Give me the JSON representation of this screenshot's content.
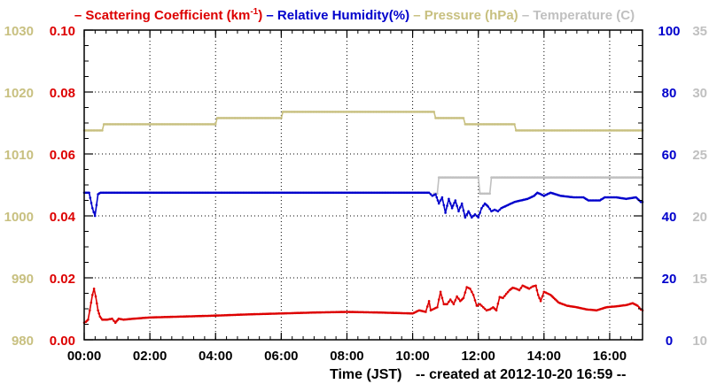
{
  "chart_data": {
    "type": "line",
    "legend": {
      "placement": "top",
      "items": [
        {
          "prefix": "– ",
          "text": "Scattering Coefficient (km",
          "sup": "-1",
          "suffix": ")",
          "color": "#dd0000"
        },
        {
          "prefix": "– ",
          "text": "Relative Humidity(%)",
          "color": "#0000cc"
        },
        {
          "prefix": "– ",
          "text": "Pressure (hPa)",
          "color": "#c8c080"
        },
        {
          "prefix": "– ",
          "text": "Temperature (C)",
          "color": "#c0c0c0"
        }
      ]
    },
    "xlabel": "Time (JST)",
    "footer": "-- created at 2012-10-20 16:59 --",
    "x_range": [
      0,
      17
    ],
    "x_unit": "hours",
    "x_ticks": [
      {
        "v": 0,
        "label": "00:00"
      },
      {
        "v": 2,
        "label": "02:00"
      },
      {
        "v": 4,
        "label": "04:00"
      },
      {
        "v": 6,
        "label": "06:00"
      },
      {
        "v": 8,
        "label": "08:00"
      },
      {
        "v": 10,
        "label": "10:00"
      },
      {
        "v": 12,
        "label": "12:00"
      },
      {
        "v": 14,
        "label": "14:00"
      },
      {
        "v": 16,
        "label": "16:00"
      }
    ],
    "grid": true,
    "axes": {
      "scattering": {
        "range": [
          0,
          0.1
        ],
        "ticks": [
          "0.00",
          "0.02",
          "0.04",
          "0.06",
          "0.08",
          "0.10"
        ],
        "color": "#dd0000",
        "side": "left-inner"
      },
      "pressure": {
        "range": [
          980,
          1030
        ],
        "ticks": [
          "980",
          "990",
          "1000",
          "1010",
          "1020",
          "1030"
        ],
        "color": "#c8c080",
        "side": "left-outer"
      },
      "humidity": {
        "range": [
          0,
          100
        ],
        "ticks": [
          "0",
          "20",
          "40",
          "60",
          "80",
          "100"
        ],
        "color": "#0000cc",
        "side": "right-inner"
      },
      "temperature": {
        "range": [
          10,
          35
        ],
        "ticks": [
          "10",
          "15",
          "20",
          "25",
          "30",
          "35"
        ],
        "color": "#c0c0c0",
        "side": "right-outer"
      }
    },
    "series": [
      {
        "key": "pressure",
        "axis": "pressure",
        "color": "#c8c080",
        "points": [
          [
            0,
            1013.8
          ],
          [
            0.55,
            1013.8
          ],
          [
            0.6,
            1014.8
          ],
          [
            4.0,
            1014.8
          ],
          [
            4.05,
            1015.8
          ],
          [
            6.0,
            1015.8
          ],
          [
            6.05,
            1016.8
          ],
          [
            10.65,
            1016.8
          ],
          [
            10.7,
            1015.8
          ],
          [
            11.55,
            1015.8
          ],
          [
            11.6,
            1014.8
          ],
          [
            13.1,
            1014.8
          ],
          [
            13.15,
            1013.8
          ],
          [
            17,
            1013.8
          ]
        ]
      },
      {
        "key": "temperature",
        "axis": "temperature",
        "color": "#c0c0c0",
        "points": [
          [
            10.65,
            21.8
          ],
          [
            10.75,
            21.8
          ],
          [
            10.8,
            23.1
          ],
          [
            12.0,
            23.1
          ],
          [
            12.05,
            21.8
          ],
          [
            12.35,
            21.8
          ],
          [
            12.4,
            23.1
          ],
          [
            17,
            23.1
          ]
        ]
      },
      {
        "key": "humidity",
        "axis": "humidity",
        "color": "#0000cc",
        "points": [
          [
            0,
            47.5
          ],
          [
            0.15,
            47.5
          ],
          [
            0.25,
            42.5
          ],
          [
            0.33,
            40.0
          ],
          [
            0.42,
            47.0
          ],
          [
            0.5,
            47.5
          ],
          [
            2,
            47.5
          ],
          [
            4,
            47.5
          ],
          [
            6,
            47.5
          ],
          [
            8,
            47.5
          ],
          [
            10,
            47.5
          ],
          [
            10.5,
            47.5
          ],
          [
            10.6,
            46.5
          ],
          [
            10.7,
            47.0
          ],
          [
            10.8,
            44.0
          ],
          [
            10.9,
            46.0
          ],
          [
            11.0,
            41.0
          ],
          [
            11.1,
            45.5
          ],
          [
            11.2,
            42.5
          ],
          [
            11.3,
            45.0
          ],
          [
            11.4,
            41.5
          ],
          [
            11.5,
            44.0
          ],
          [
            11.6,
            39.5
          ],
          [
            11.7,
            41.5
          ],
          [
            11.8,
            39.5
          ],
          [
            11.9,
            40.5
          ],
          [
            12.0,
            39.5
          ],
          [
            12.1,
            42.5
          ],
          [
            12.2,
            44.0
          ],
          [
            12.3,
            43.0
          ],
          [
            12.4,
            41.5
          ],
          [
            12.5,
            42.0
          ],
          [
            12.6,
            41.5
          ],
          [
            12.7,
            42.5
          ],
          [
            12.9,
            43.5
          ],
          [
            13.1,
            44.5
          ],
          [
            13.3,
            45.0
          ],
          [
            13.5,
            45.5
          ],
          [
            13.7,
            46.5
          ],
          [
            13.8,
            47.5
          ],
          [
            14.0,
            46.5
          ],
          [
            14.2,
            47.5
          ],
          [
            14.5,
            46.5
          ],
          [
            14.9,
            46.0
          ],
          [
            15.2,
            46.0
          ],
          [
            15.35,
            45.0
          ],
          [
            15.7,
            45.0
          ],
          [
            15.85,
            46.0
          ],
          [
            16.2,
            46.0
          ],
          [
            16.5,
            45.5
          ],
          [
            16.8,
            46.0
          ],
          [
            16.95,
            44.5
          ],
          [
            17,
            44.5
          ]
        ]
      },
      {
        "key": "scattering",
        "axis": "scattering",
        "color": "#dd0000",
        "points": [
          [
            0,
            0.0055
          ],
          [
            0.05,
            0.0058
          ],
          [
            0.12,
            0.0065
          ],
          [
            0.17,
            0.0095
          ],
          [
            0.25,
            0.0145
          ],
          [
            0.3,
            0.0165
          ],
          [
            0.35,
            0.014
          ],
          [
            0.42,
            0.0095
          ],
          [
            0.48,
            0.0075
          ],
          [
            0.55,
            0.0065
          ],
          [
            0.7,
            0.0065
          ],
          [
            0.85,
            0.0068
          ],
          [
            0.95,
            0.0055
          ],
          [
            1.05,
            0.0068
          ],
          [
            1.2,
            0.0065
          ],
          [
            1.5,
            0.0068
          ],
          [
            2,
            0.0072
          ],
          [
            3,
            0.0075
          ],
          [
            4,
            0.0078
          ],
          [
            5,
            0.0082
          ],
          [
            6,
            0.0085
          ],
          [
            7,
            0.0088
          ],
          [
            8,
            0.009
          ],
          [
            9,
            0.0088
          ],
          [
            10,
            0.0085
          ],
          [
            10.2,
            0.0095
          ],
          [
            10.4,
            0.009
          ],
          [
            10.5,
            0.0125
          ],
          [
            10.55,
            0.0095
          ],
          [
            10.65,
            0.01
          ],
          [
            10.75,
            0.0105
          ],
          [
            10.85,
            0.0155
          ],
          [
            10.95,
            0.0115
          ],
          [
            11.05,
            0.0115
          ],
          [
            11.15,
            0.013
          ],
          [
            11.25,
            0.0115
          ],
          [
            11.35,
            0.014
          ],
          [
            11.45,
            0.0125
          ],
          [
            11.55,
            0.0135
          ],
          [
            11.65,
            0.017
          ],
          [
            11.75,
            0.0165
          ],
          [
            11.85,
            0.0145
          ],
          [
            11.95,
            0.011
          ],
          [
            12.05,
            0.0115
          ],
          [
            12.15,
            0.0105
          ],
          [
            12.25,
            0.0095
          ],
          [
            12.35,
            0.0098
          ],
          [
            12.45,
            0.0105
          ],
          [
            12.55,
            0.0095
          ],
          [
            12.65,
            0.0138
          ],
          [
            12.75,
            0.0135
          ],
          [
            12.85,
            0.0148
          ],
          [
            12.95,
            0.016
          ],
          [
            13.05,
            0.0168
          ],
          [
            13.15,
            0.0165
          ],
          [
            13.25,
            0.016
          ],
          [
            13.35,
            0.0175
          ],
          [
            13.45,
            0.017
          ],
          [
            13.55,
            0.0165
          ],
          [
            13.65,
            0.0172
          ],
          [
            13.75,
            0.0175
          ],
          [
            13.82,
            0.0145
          ],
          [
            13.9,
            0.0125
          ],
          [
            14.0,
            0.0155
          ],
          [
            14.1,
            0.015
          ],
          [
            14.2,
            0.0145
          ],
          [
            14.3,
            0.0135
          ],
          [
            14.45,
            0.012
          ],
          [
            14.7,
            0.011
          ],
          [
            15.0,
            0.0105
          ],
          [
            15.3,
            0.0098
          ],
          [
            15.6,
            0.0095
          ],
          [
            15.9,
            0.0105
          ],
          [
            16.2,
            0.0108
          ],
          [
            16.5,
            0.0112
          ],
          [
            16.7,
            0.0118
          ],
          [
            16.85,
            0.011
          ],
          [
            16.95,
            0.0098
          ],
          [
            17,
            0.0095
          ]
        ]
      }
    ]
  }
}
